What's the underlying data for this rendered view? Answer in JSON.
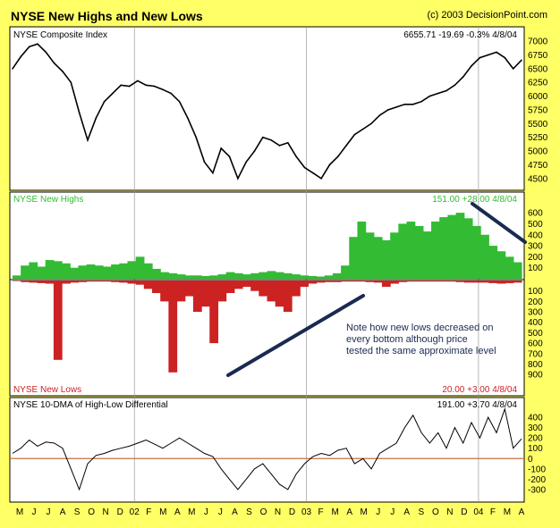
{
  "header": {
    "title": "NYSE New Highs and New Lows",
    "copyright": "(c) 2003 DecisionPoint.com"
  },
  "annotation": "Note how new lows decreased on every bottom although price tested the same approximate level",
  "colors": {
    "background": "#ffff66",
    "panel": "#ffffff",
    "price_line": "#000000",
    "highs": "#33bb33",
    "lows": "#cc2222",
    "zero_line": "#c87040",
    "trend_line": "#1a2a50"
  },
  "x_labels": [
    "M",
    "J",
    "J",
    "A",
    "S",
    "O",
    "N",
    "D",
    "02",
    "F",
    "M",
    "A",
    "M",
    "J",
    "J",
    "A",
    "S",
    "O",
    "N",
    "D",
    "03",
    "F",
    "M",
    "A",
    "M",
    "J",
    "J",
    "A",
    "S",
    "O",
    "N",
    "D",
    "04",
    "F",
    "M",
    "A"
  ],
  "chart_data": [
    {
      "type": "line",
      "title": "NYSE Composite Index",
      "readout": "6655.71  -19.69  -0.3%  4/8/04",
      "yticks": [
        4500,
        4750,
        5000,
        5250,
        5500,
        5750,
        6000,
        6250,
        6500,
        6750,
        7000
      ],
      "ylim": [
        4350,
        7100
      ],
      "series": [
        {
          "values": [
            6500,
            6720,
            6900,
            6950,
            6800,
            6600,
            6450,
            6250,
            5700,
            5200,
            5600,
            5900,
            6050,
            6200,
            6180,
            6280,
            6200,
            6180,
            6120,
            6050,
            5900,
            5600,
            5250,
            4800,
            4600,
            5050,
            4900,
            4500,
            4800,
            5000,
            5250,
            5200,
            5100,
            5150,
            4900,
            4700,
            4600,
            4500,
            4750,
            4900,
            5100,
            5300,
            5400,
            5500,
            5650,
            5750,
            5800,
            5850,
            5850,
            5900,
            6000,
            6050,
            6100,
            6200,
            6350,
            6550,
            6700,
            6750,
            6800,
            6700,
            6500,
            6655
          ]
        }
      ]
    },
    {
      "type": "area",
      "title": "NYSE New Highs",
      "readout": "151.00  +28.00  4/8/04",
      "yticks": [
        100,
        200,
        300,
        400,
        500,
        600
      ],
      "ylim": [
        0,
        650
      ],
      "values": [
        30,
        120,
        150,
        110,
        170,
        160,
        140,
        100,
        120,
        130,
        120,
        110,
        130,
        140,
        160,
        200,
        140,
        90,
        60,
        50,
        40,
        30,
        30,
        25,
        30,
        40,
        60,
        50,
        40,
        50,
        60,
        70,
        60,
        50,
        40,
        30,
        25,
        20,
        30,
        50,
        120,
        380,
        520,
        420,
        380,
        350,
        420,
        500,
        520,
        480,
        430,
        520,
        560,
        580,
        600,
        550,
        480,
        400,
        300,
        250,
        200,
        150
      ]
    },
    {
      "type": "area",
      "title": "NYSE New Lows",
      "readout": "20.00  +3.00  4/8/04",
      "yticks": [
        100,
        200,
        300,
        400,
        500,
        600,
        700,
        800,
        900
      ],
      "ylim": [
        0,
        950
      ],
      "values": [
        5,
        15,
        20,
        25,
        30,
        760,
        30,
        20,
        15,
        10,
        10,
        10,
        15,
        20,
        30,
        40,
        80,
        120,
        200,
        880,
        200,
        150,
        300,
        250,
        600,
        200,
        120,
        80,
        60,
        100,
        150,
        200,
        250,
        300,
        150,
        60,
        30,
        20,
        15,
        15,
        10,
        10,
        10,
        15,
        20,
        60,
        30,
        15,
        10,
        10,
        10,
        10,
        10,
        10,
        15,
        20,
        20,
        20,
        25,
        30,
        25,
        20
      ]
    },
    {
      "type": "line",
      "title": "NYSE 10-DMA of High-Low Differential",
      "readout": "191.00  +3.70  4/8/04",
      "yticks": [
        -300,
        -200,
        -100,
        0,
        100,
        200,
        300,
        400
      ],
      "ylim": [
        -370,
        470
      ],
      "series": [
        {
          "values": [
            50,
            100,
            180,
            120,
            160,
            150,
            100,
            -100,
            -300,
            -50,
            30,
            50,
            80,
            100,
            120,
            150,
            180,
            140,
            100,
            150,
            200,
            150,
            100,
            50,
            20,
            -100,
            -200,
            -300,
            -200,
            -100,
            -50,
            -150,
            -250,
            -300,
            -150,
            -50,
            20,
            50,
            30,
            80,
            100,
            -50,
            0,
            -100,
            50,
            100,
            150,
            300,
            420,
            250,
            150,
            250,
            100,
            300,
            150,
            350,
            200,
            400,
            250,
            480,
            100,
            191
          ]
        }
      ]
    }
  ]
}
